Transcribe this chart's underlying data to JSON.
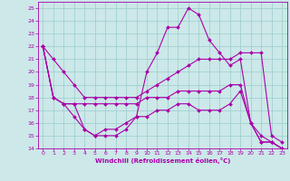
{
  "xlabel": "Windchill (Refroidissement éolien,°C)",
  "xlim": [
    -0.5,
    23.5
  ],
  "ylim": [
    14,
    25.5
  ],
  "yticks": [
    14,
    15,
    16,
    17,
    18,
    19,
    20,
    21,
    22,
    23,
    24,
    25
  ],
  "xticks": [
    0,
    1,
    2,
    3,
    4,
    5,
    6,
    7,
    8,
    9,
    10,
    11,
    12,
    13,
    14,
    15,
    16,
    17,
    18,
    19,
    20,
    21,
    22,
    23
  ],
  "bg_color": "#cce8e8",
  "line_color": "#aa00aa",
  "grid_color": "#99cccc",
  "series": [
    {
      "x": [
        0,
        1,
        2,
        3,
        4,
        5,
        6,
        7,
        8,
        9,
        10,
        11,
        12,
        13,
        14,
        15,
        16,
        17,
        18,
        19,
        20,
        21,
        22,
        23
      ],
      "y": [
        22,
        21,
        20,
        19,
        18,
        18,
        18,
        18,
        18,
        18,
        18.5,
        19,
        19.5,
        20,
        20.5,
        21,
        21,
        21,
        21,
        21.5,
        21.5,
        21.5,
        15,
        14.5
      ]
    },
    {
      "x": [
        0,
        1,
        2,
        3,
        4,
        5,
        6,
        7,
        8,
        9,
        10,
        11,
        12,
        13,
        14,
        15,
        16,
        17,
        18,
        19,
        20,
        21,
        22,
        23
      ],
      "y": [
        22,
        18,
        17.5,
        17.5,
        15.5,
        15.0,
        15.0,
        15.0,
        15.5,
        16.5,
        20,
        21.5,
        23.5,
        23.5,
        25.0,
        24.5,
        22.5,
        21.5,
        20.5,
        21.0,
        16.0,
        14.5,
        14.5,
        14.0
      ]
    },
    {
      "x": [
        0,
        1,
        2,
        3,
        4,
        5,
        6,
        7,
        8,
        9,
        10,
        11,
        12,
        13,
        14,
        15,
        16,
        17,
        18,
        19,
        20,
        21,
        22,
        23
      ],
      "y": [
        22,
        18,
        17.5,
        17.5,
        17.5,
        17.5,
        17.5,
        17.5,
        17.5,
        17.5,
        18,
        18,
        18,
        18.5,
        18.5,
        18.5,
        18.5,
        18.5,
        19,
        19,
        16,
        15,
        14.5,
        14.0
      ]
    },
    {
      "x": [
        0,
        1,
        2,
        3,
        4,
        5,
        6,
        7,
        8,
        9,
        10,
        11,
        12,
        13,
        14,
        15,
        16,
        17,
        18,
        19,
        20,
        21,
        22,
        23
      ],
      "y": [
        22,
        18,
        17.5,
        16.5,
        15.5,
        15.0,
        15.5,
        15.5,
        16.0,
        16.5,
        16.5,
        17,
        17,
        17.5,
        17.5,
        17.0,
        17.0,
        17.0,
        17.5,
        18.5,
        16.0,
        14.5,
        14.5,
        14.0
      ]
    }
  ]
}
